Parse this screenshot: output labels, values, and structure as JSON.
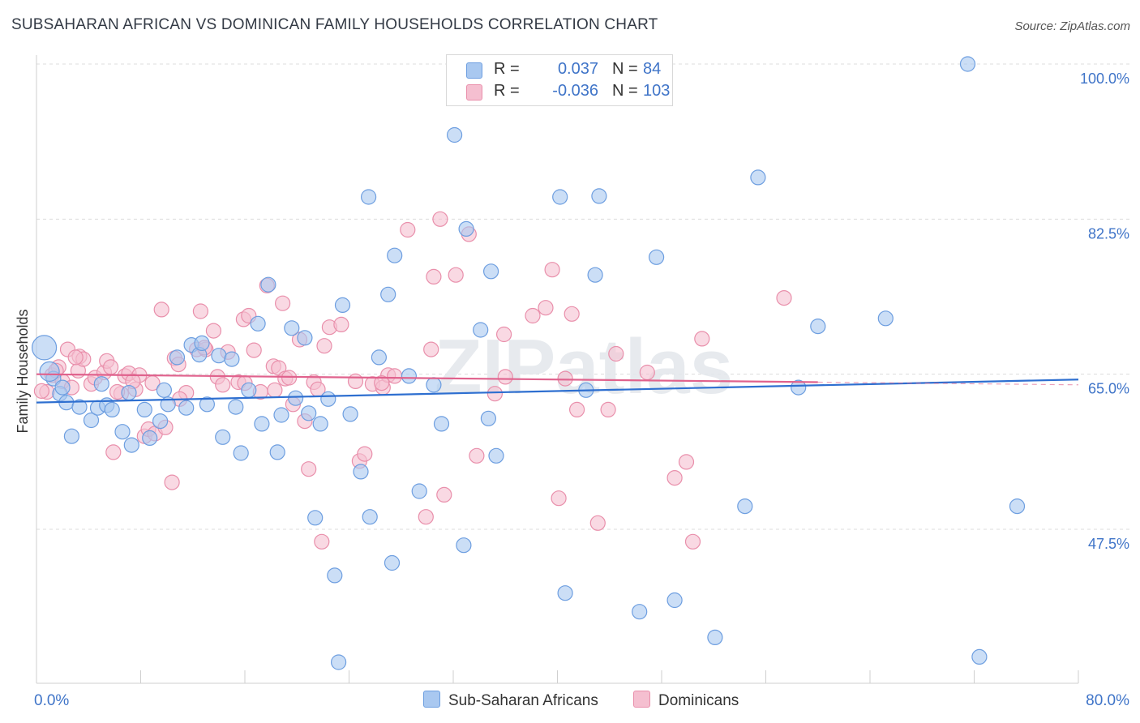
{
  "title": "SUBSAHARAN AFRICAN VS DOMINICAN FAMILY HOUSEHOLDS CORRELATION CHART",
  "source": "Source: ZipAtlas.com",
  "watermark": "ZIPatlas",
  "colors": {
    "blue_fill": "#a9c8f0",
    "blue_stroke": "#6d9ee0",
    "blue_line": "#2e6fd0",
    "pink_fill": "#f5bfd0",
    "pink_stroke": "#e98fab",
    "pink_line": "#e0628d",
    "axis_text": "#3f74c8"
  },
  "legend": {
    "rows": [
      {
        "r_label": "R =",
        "r_value": "0.037",
        "n_label": "N =",
        "n_value": "84"
      },
      {
        "r_label": "R =",
        "r_value": "-0.036",
        "n_label": "N =",
        "n_value": "103"
      }
    ]
  },
  "bottom_legend": {
    "series1": "Sub-Saharan Africans",
    "series2": "Dominicans"
  },
  "chart_data": {
    "type": "scatter",
    "title": "SUBSAHARAN AFRICAN VS DOMINICAN FAMILY HOUSEHOLDS CORRELATION CHART",
    "xlabel": "",
    "ylabel": "Family Households",
    "xlim": [
      0,
      80
    ],
    "ylim": [
      33,
      102
    ],
    "x_tick_labels": [
      "0.0%",
      "80.0%"
    ],
    "y_ticks": [
      47.5,
      65.0,
      82.5,
      100.0
    ],
    "y_tick_labels": [
      "47.5%",
      "65.0%",
      "82.5%",
      "100.0%"
    ],
    "grid": true,
    "legend_position": "top-center",
    "series": [
      {
        "name": "Sub-Saharan Africans",
        "trend": {
          "x": [
            0,
            80
          ],
          "y": [
            61.8,
            64.4
          ]
        },
        "points": [
          [
            0.6,
            68.0
          ],
          [
            1.3,
            64.5
          ],
          [
            1.8,
            62.8
          ],
          [
            2.3,
            61.8
          ],
          [
            2.7,
            58.0
          ],
          [
            3.3,
            61.3
          ],
          [
            4.2,
            59.8
          ],
          [
            4.7,
            61.2
          ],
          [
            5.0,
            63.9
          ],
          [
            5.4,
            61.5
          ],
          [
            5.8,
            61.0
          ],
          [
            6.6,
            58.5
          ],
          [
            7.1,
            62.9
          ],
          [
            7.3,
            57.0
          ],
          [
            8.3,
            61.0
          ],
          [
            8.7,
            57.8
          ],
          [
            9.5,
            59.7
          ],
          [
            9.8,
            63.2
          ],
          [
            10.1,
            61.6
          ],
          [
            10.8,
            66.9
          ],
          [
            11.5,
            61.2
          ],
          [
            11.9,
            68.3
          ],
          [
            12.5,
            67.2
          ],
          [
            12.7,
            68.5
          ],
          [
            13.1,
            61.6
          ],
          [
            14.0,
            67.1
          ],
          [
            14.3,
            57.9
          ],
          [
            15.0,
            66.7
          ],
          [
            15.3,
            61.3
          ],
          [
            15.7,
            56.1
          ],
          [
            16.3,
            63.2
          ],
          [
            17.0,
            70.7
          ],
          [
            17.3,
            59.4
          ],
          [
            17.8,
            75.1
          ],
          [
            18.5,
            56.2
          ],
          [
            18.8,
            60.4
          ],
          [
            19.6,
            70.2
          ],
          [
            19.9,
            62.3
          ],
          [
            20.6,
            69.1
          ],
          [
            20.9,
            60.6
          ],
          [
            21.4,
            48.8
          ],
          [
            21.8,
            59.4
          ],
          [
            22.4,
            62.2
          ],
          [
            22.9,
            42.3
          ],
          [
            23.5,
            72.8
          ],
          [
            24.1,
            60.5
          ],
          [
            24.9,
            54.0
          ],
          [
            25.5,
            85.0
          ],
          [
            25.6,
            48.9
          ],
          [
            26.3,
            66.9
          ],
          [
            27.0,
            74.0
          ],
          [
            27.5,
            78.4
          ],
          [
            27.3,
            43.7
          ],
          [
            28.6,
            64.8
          ],
          [
            29.4,
            51.8
          ],
          [
            30.5,
            63.8
          ],
          [
            31.1,
            59.4
          ],
          [
            32.1,
            92.0
          ],
          [
            32.8,
            45.7
          ],
          [
            33.0,
            81.4
          ],
          [
            34.1,
            70.0
          ],
          [
            34.7,
            60.0
          ],
          [
            34.9,
            76.6
          ],
          [
            35.3,
            55.8
          ],
          [
            40.2,
            85.0
          ],
          [
            40.6,
            40.3
          ],
          [
            42.2,
            63.2
          ],
          [
            43.2,
            85.1
          ],
          [
            42.9,
            76.2
          ],
          [
            46.3,
            38.2
          ],
          [
            47.6,
            78.2
          ],
          [
            49.0,
            39.5
          ],
          [
            52.1,
            35.3
          ],
          [
            54.4,
            50.1
          ],
          [
            55.4,
            87.2
          ],
          [
            58.5,
            63.5
          ],
          [
            60.0,
            70.4
          ],
          [
            65.2,
            71.3
          ],
          [
            71.5,
            100.0
          ],
          [
            72.4,
            33.1
          ],
          [
            75.3,
            50.1
          ],
          [
            1.0,
            65.3
          ],
          [
            2.0,
            63.5
          ],
          [
            23.2,
            32.5
          ]
        ]
      },
      {
        "name": "Dominicans",
        "trend": {
          "x": [
            0,
            60
          ],
          "y": [
            65.0,
            64.1
          ]
        },
        "points": [
          [
            0.8,
            63.0
          ],
          [
            1.2,
            64.9
          ],
          [
            1.7,
            65.8
          ],
          [
            2.0,
            64.2
          ],
          [
            2.4,
            67.8
          ],
          [
            2.7,
            63.5
          ],
          [
            3.2,
            65.4
          ],
          [
            3.3,
            67.0
          ],
          [
            3.6,
            66.7
          ],
          [
            4.2,
            63.9
          ],
          [
            4.5,
            64.6
          ],
          [
            5.2,
            65.2
          ],
          [
            5.4,
            66.5
          ],
          [
            5.7,
            65.8
          ],
          [
            5.9,
            56.2
          ],
          [
            6.5,
            62.8
          ],
          [
            6.8,
            64.8
          ],
          [
            7.1,
            65.1
          ],
          [
            7.6,
            63.3
          ],
          [
            7.9,
            64.9
          ],
          [
            8.3,
            58.0
          ],
          [
            8.6,
            58.8
          ],
          [
            8.9,
            64.0
          ],
          [
            9.1,
            58.3
          ],
          [
            9.6,
            72.3
          ],
          [
            9.9,
            59.0
          ],
          [
            10.4,
            52.8
          ],
          [
            10.6,
            66.8
          ],
          [
            10.9,
            66.1
          ],
          [
            11.5,
            62.9
          ],
          [
            12.3,
            67.8
          ],
          [
            12.6,
            72.1
          ],
          [
            13.0,
            67.8
          ],
          [
            13.6,
            69.9
          ],
          [
            13.9,
            64.7
          ],
          [
            14.3,
            63.8
          ],
          [
            14.7,
            67.5
          ],
          [
            15.5,
            64.1
          ],
          [
            15.9,
            71.2
          ],
          [
            16.3,
            71.6
          ],
          [
            16.7,
            67.7
          ],
          [
            17.2,
            63.0
          ],
          [
            17.7,
            75.0
          ],
          [
            18.2,
            65.9
          ],
          [
            18.6,
            65.7
          ],
          [
            18.9,
            73.0
          ],
          [
            19.1,
            64.5
          ],
          [
            19.7,
            61.6
          ],
          [
            20.2,
            68.9
          ],
          [
            20.6,
            59.7
          ],
          [
            20.9,
            54.3
          ],
          [
            21.3,
            64.1
          ],
          [
            21.6,
            63.3
          ],
          [
            21.9,
            46.1
          ],
          [
            22.1,
            68.2
          ],
          [
            22.5,
            70.3
          ],
          [
            23.4,
            70.6
          ],
          [
            24.5,
            64.2
          ],
          [
            24.8,
            55.2
          ],
          [
            25.2,
            56.0
          ],
          [
            25.8,
            63.9
          ],
          [
            26.6,
            63.5
          ],
          [
            27.0,
            64.9
          ],
          [
            27.5,
            64.8
          ],
          [
            28.5,
            81.3
          ],
          [
            29.9,
            48.9
          ],
          [
            30.3,
            67.8
          ],
          [
            30.5,
            76.0
          ],
          [
            31.0,
            82.5
          ],
          [
            31.3,
            51.4
          ],
          [
            32.2,
            76.2
          ],
          [
            33.2,
            80.8
          ],
          [
            33.8,
            55.8
          ],
          [
            35.2,
            62.8
          ],
          [
            35.9,
            69.5
          ],
          [
            36.0,
            64.7
          ],
          [
            38.1,
            71.6
          ],
          [
            39.1,
            72.5
          ],
          [
            39.6,
            76.8
          ],
          [
            40.1,
            51.0
          ],
          [
            40.6,
            64.5
          ],
          [
            41.1,
            71.8
          ],
          [
            41.5,
            61.0
          ],
          [
            43.1,
            48.2
          ],
          [
            43.9,
            61.0
          ],
          [
            44.5,
            67.3
          ],
          [
            46.9,
            65.2
          ],
          [
            49.0,
            53.3
          ],
          [
            49.9,
            55.1
          ],
          [
            50.4,
            46.1
          ],
          [
            51.1,
            69.0
          ],
          [
            57.4,
            73.6
          ],
          [
            0.4,
            63.1
          ],
          [
            1.5,
            65.4
          ],
          [
            3.0,
            66.9
          ],
          [
            6.2,
            63.0
          ],
          [
            7.4,
            64.2
          ],
          [
            11.0,
            62.2
          ],
          [
            12.9,
            68.0
          ],
          [
            16.0,
            64.0
          ],
          [
            18.3,
            63.2
          ],
          [
            19.4,
            64.6
          ],
          [
            26.5,
            64.0
          ]
        ]
      }
    ]
  }
}
